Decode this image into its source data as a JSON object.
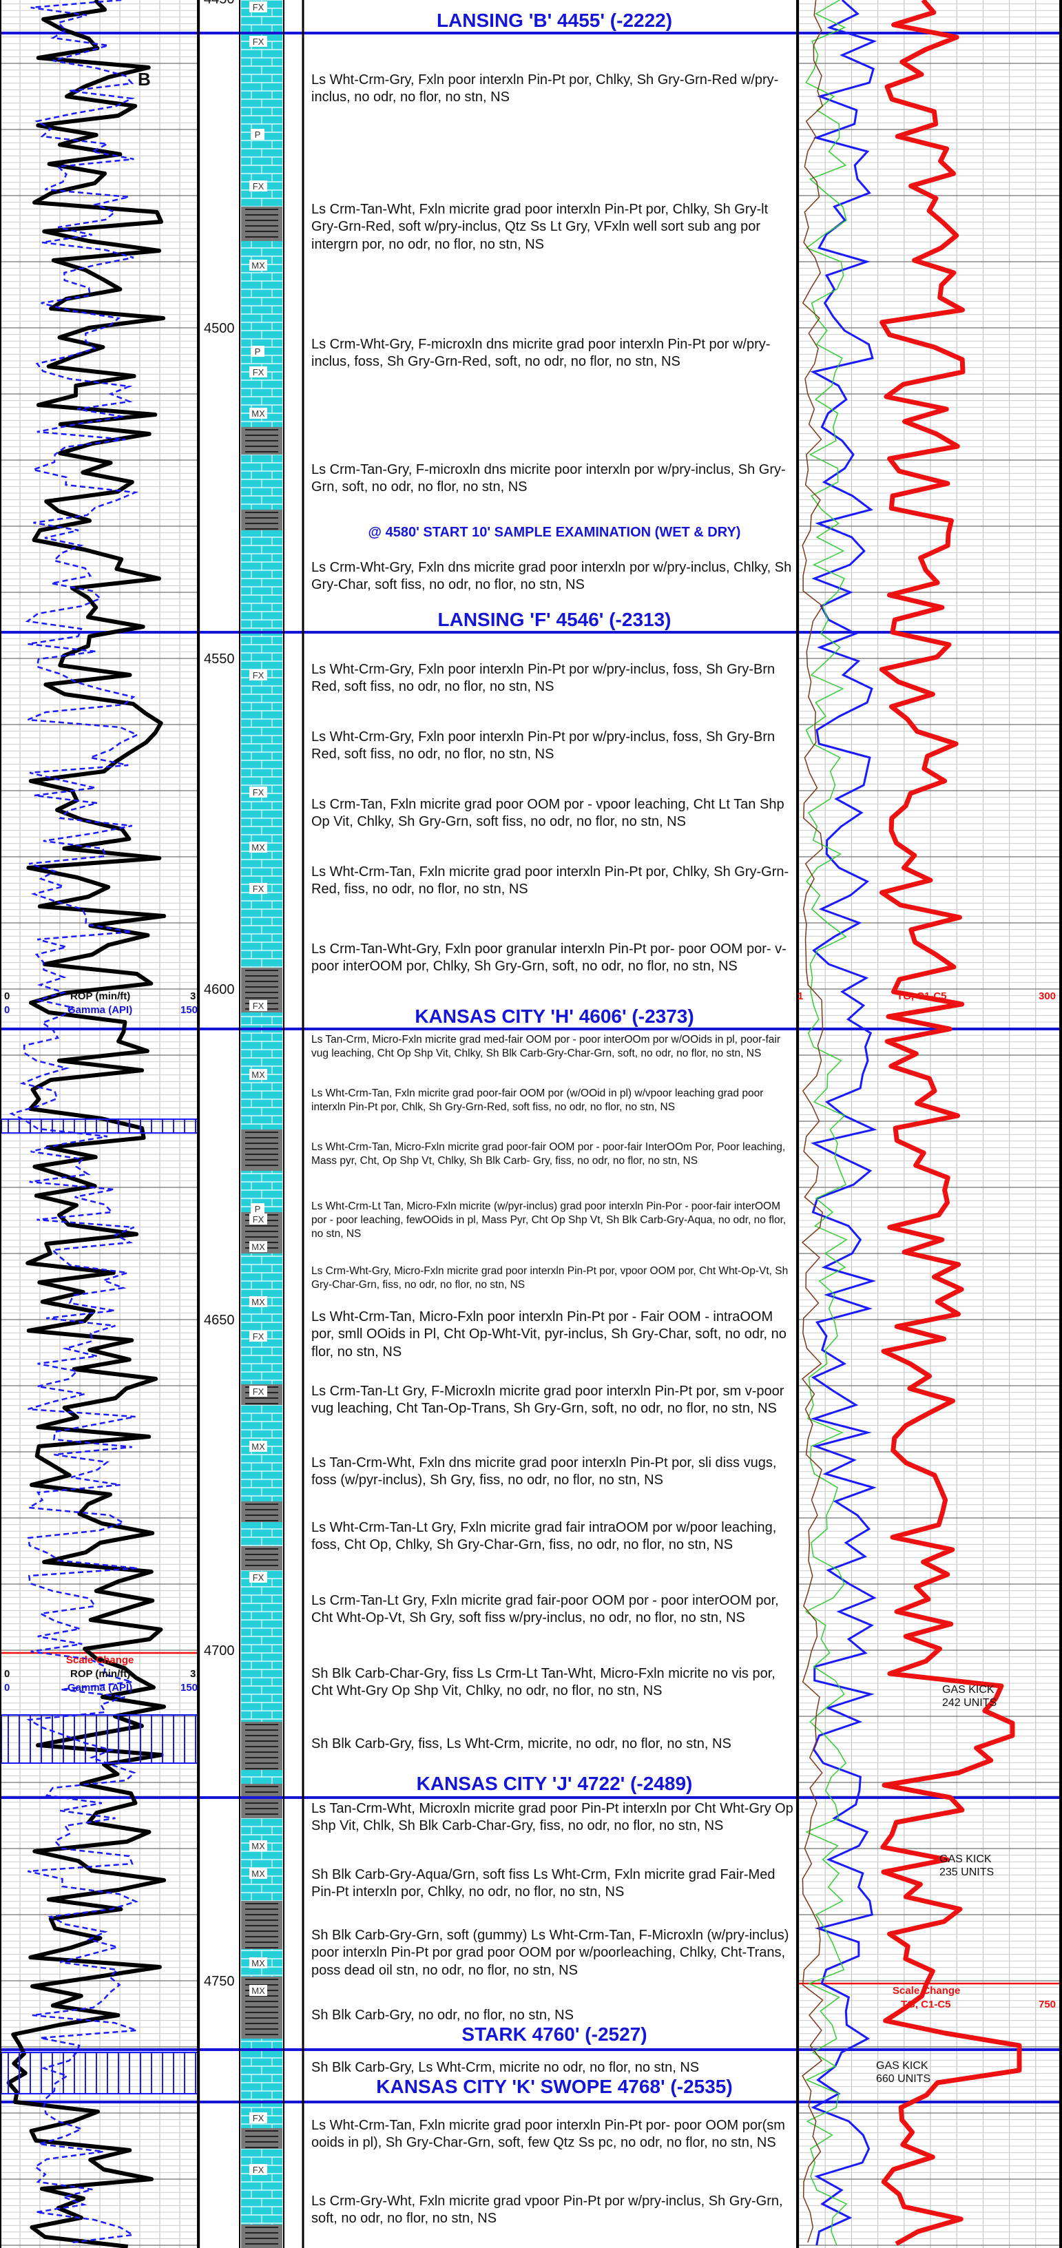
{
  "depth_labels": [
    "4450",
    "4500",
    "4550",
    "4600",
    "4650",
    "4700",
    "4750"
  ],
  "tops": [
    {
      "key": "lansing_b",
      "text": "LANSING 'B' 4455' (-2222)"
    },
    {
      "key": "lansing_f",
      "text": "LANSING 'F' 4546' (-2313)"
    },
    {
      "key": "kc_h",
      "text": "KANSAS CITY 'H' 4606' (-2373)"
    },
    {
      "key": "kc_j",
      "text": "KANSAS CITY 'J' 4722' (-2489)"
    },
    {
      "key": "stark",
      "text": "STARK 4760' (-2527)"
    },
    {
      "key": "kc_k",
      "text": "KANSAS CITY 'K' SWOPE 4768' (-2535)"
    }
  ],
  "marker_b": "B",
  "sample_note": "@ 4580' START 10' SAMPLE EXAMINATION (WET & DRY)",
  "descriptions": [
    "Ls Wht-Crm-Gry, Fxln poor interxln Pin-Pt por, Chlky, Sh Gry-Grn-Red w/pry-inclus, no odr, no flor, no stn, NS",
    "Ls Crm-Tan-Wht, Fxln micrite grad poor interxln Pin-Pt por, Chlky, Sh Gry-lt Gry-Grn-Red, soft w/pry-inclus, Qtz Ss Lt Gry, VFxln well sort sub ang por intergrn por, no odr, no flor, no stn, NS",
    "Ls Crm-Wht-Gry, F-microxln dns micrite grad poor interxln Pin-Pt por w/pry-inclus, foss, Sh Gry-Grn-Red, soft, no odr, no flor, no stn, NS",
    "Ls Crm-Tan-Gry, F-microxln dns micrite poor interxln por w/pry-inclus, Sh Gry-Grn, soft, no odr, no flor, no stn, NS",
    "Ls Crm-Wht-Gry, Fxln dns micrite grad poor interxln por w/pry-inclus, Chlky, Sh Gry-Char, soft fiss, no odr, no flor, no stn, NS",
    "Ls Wht-Crm-Gry, Fxln poor interxln Pin-Pt por w/pry-inclus, foss, Sh Gry-Brn Red, soft fiss, no odr, no flor, no stn, NS",
    "Ls Wht-Crm-Gry, Fxln poor interxln Pin-Pt por w/pry-inclus, foss, Sh Gry-Brn Red, soft fiss, no odr, no flor, no stn, NS",
    "Ls Crm-Tan, Fxln micrite grad poor OOM por - vpoor leaching, Cht Lt Tan Shp Op Vit,  Chlky, Sh Gry-Grn, soft fiss, no odr, no flor, no stn, NS",
    "Ls Wht-Crm-Tan, Fxln micrite grad poor interxln Pin-Pt por, Chlky, Sh Gry-Grn-Red, fiss, no odr, no flor, no stn, NS",
    "Ls Crm-Tan-Wht-Gry, Fxln poor granular interxln Pin-Pt por- poor OOM por- v-poor interOOM por, Chlky, Sh Gry-Grn, soft, no odr, no flor, no stn, NS",
    "Ls Tan-Crm, Micro-Fxln micrite grad med-fair OOM por - poor interOOm por w/OOids in pl, poor-fair vug leaching, Cht Op Shp Vit, Chlky, Sh Blk Carb-Gry-Char-Grn, soft, no odr, no flor, no stn, NS",
    "Ls Wht-Crm-Tan, Fxln micrite grad poor-fair OOM por (w/OOid in pl) w/vpoor leaching grad poor interxln Pin-Pt por, Chlk, Sh Gry-Grn-Red, soft fiss, no odr, no flor, no stn, NS",
    "Ls Wht-Crm-Tan, Micro-Fxln micrite grad poor-fair OOM por - poor-fair InterOOm Por, Poor leaching, Mass pyr, Cht, Op Shp Vt, Chlky, Sh Blk Carb- Gry, fiss, no odr, no flor, no stn, NS",
    "Ls Wht-Crm-Lt Tan, Micro-Fxln micrite (w/pyr-inclus) grad poor interxln Pin-Por - poor-fair interOOM por - poor leaching, fewOOids in pl, Mass Pyr, Cht Op Shp Vt, Sh Blk Carb-Gry-Aqua, no odr, no flor, no stn, NS",
    "Ls Crm-Wht-Gry, Micro-Fxln micrite grad poor interxln Pin-Pt por, vpoor OOM por, Cht Wht-Op-Vt, Sh Gry-Char-Grn, fiss, no odr, no flor, no stn, NS",
    "Ls Wht-Crm-Tan, Micro-Fxln poor interxln Pin-Pt por - Fair OOM - intraOOM por, smll OOids in Pl, Cht Op-Wht-Vit, pyr-inclus, Sh Gry-Char, soft, no odr, no flor, no stn, NS",
    "Ls Crm-Tan-Lt Gry, F-Microxln micrite grad poor interxln Pin-Pt por, sm v-poor vug leaching, Cht Tan-Op-Trans, Sh Gry-Grn, soft, no odr, no flor, no stn, NS",
    "Ls Tan-Crm-Wht, Fxln dns micrite grad poor interxln Pin-Pt por, sli diss vugs, foss (w/pyr-inclus), Sh Gry, fiss, no odr, no flor, no stn, NS",
    "Ls Wht-Crm-Tan-Lt Gry, Fxln micrite grad fair intraOOM por w/poor leaching, foss, Cht Op, Chlky, Sh Gry-Char-Grn, fiss, no odr, no flor, no stn, NS",
    "Ls Crm-Tan-Lt Gry, Fxln micrite grad fair-poor OOM por - poor interOOM por, Cht Wht-Op-Vt, Sh Gry, soft fiss w/pry-inclus, no odr, no flor, no stn, NS",
    "Sh Blk Carb-Char-Gry, fiss Ls Crm-Lt Tan-Wht, Micro-Fxln  micrite no vis por, Cht Wht-Gry Op Shp Vit, Chlky, no odr, no flor, no stn, NS",
    "Sh Blk Carb-Gry, fiss,  Ls Wht-Crm, micrite, no odr, no flor, no stn, NS",
    "Ls Tan-Crm-Wht, Microxln micrite grad poor Pin-Pt interxln por Cht Wht-Gry Op Shp Vit, Chlk, Sh Blk Carb-Char-Gry, fiss, no odr, no flor, no stn, NS",
    "Sh Blk Carb-Gry-Aqua/Grn, soft fiss Ls Wht-Crm, Fxln micrite grad Fair-Med Pin-Pt interxln por, Chlky, no odr, no flor, no stn, NS",
    "Sh Blk Carb-Gry-Grn, soft (gummy) Ls Wht-Crm-Tan, F-Microxln (w/pry-inclus) poor interxln Pin-Pt por grad poor OOM por w/poorleaching, Chlky, Cht-Trans, poss dead oil stn, no odr, no flor, no stn, NS",
    "Sh Blk Carb-Gry, no odr, no flor, no stn, NS",
    "Sh Blk Carb-Gry,  Ls Wht-Crm, micrite no odr, no flor, no stn, NS",
    "Ls Wht-Crm-Tan, Fxln micrite grad poor interxln Pin-Pt por- poor OOM por(sm ooids in pl), Sh Gry-Char-Grn, soft, few Qtz Ss pc, no odr, no flor, no stn, NS",
    "Ls Crm-Gry-Wht, Fxln micrite grad vpoor Pin-Pt por w/pry-inclus, Sh Gry-Grn, soft, no odr, no flor, no stn, NS"
  ],
  "track_headers": {
    "rop_min": "0",
    "rop_label": "ROP (min/ft)",
    "rop_max": "3",
    "gamma_min": "0",
    "gamma_label": "Gamma (API)",
    "gamma_max": "150",
    "tg_min": "1",
    "tg_label": "TG, C1-C5",
    "tg_max": "300",
    "scale_change": "Scale Change",
    "tg_max_2": "750"
  },
  "lith_symbols": [
    "FX",
    "P",
    "MX"
  ],
  "gas_kicks": [
    {
      "title": "GAS KICK",
      "units": "242 UNITS"
    },
    {
      "title": "GAS KICK",
      "units": "235 UNITS"
    },
    {
      "title": "GAS KICK",
      "units": "660 UNITS"
    }
  ],
  "colors": {
    "tops": "#1515d8",
    "tg": "#ee1111",
    "rop": "#000000",
    "gamma": "#1a1aff",
    "lith_lime": "#27d0d8",
    "lith_shale": "#777777"
  }
}
